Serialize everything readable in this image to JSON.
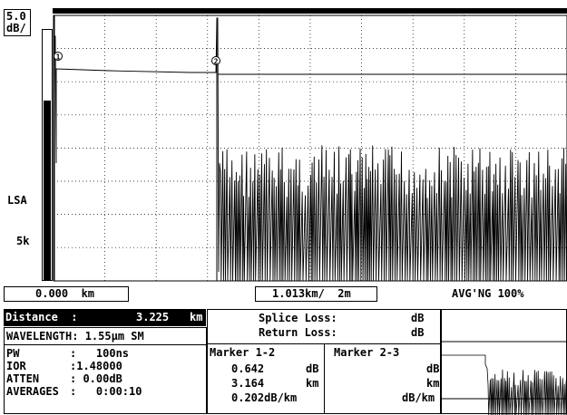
{
  "scale": {
    "db_per_div_top": "5.0",
    "db_per_div_bottom": "dB/",
    "mode": "LSA",
    "range": "5k"
  },
  "trace": {
    "marker_labels": [
      "1",
      "2"
    ],
    "cursor_left": "0.000  km",
    "window_width": "1.013km/  2m",
    "averaging": "AVG'NG 100%"
  },
  "distance": {
    "label": "Distance  :",
    "value": "3.225",
    "unit": "km"
  },
  "params": {
    "wavelength": "WAVELENGTH: 1.55μm SM",
    "pw_label": "PW",
    "pw_value": ":   100ns",
    "ior_label": "IOR",
    "ior_value": ":1.48000",
    "atten_label": "ATTEN",
    "atten_value": ": 0.00dB",
    "averages_label": "AVERAGES",
    "averages_value": ":   0:00:10"
  },
  "splice": {
    "splice_label": "Splice Loss:",
    "splice_unit": "dB",
    "return_label": "Return Loss:",
    "return_unit": "dB"
  },
  "marker12": {
    "title": "Marker 1-2",
    "loss": "0.642",
    "loss_unit": "dB",
    "dist": "3.164",
    "dist_unit": "km",
    "att": "0.202dB/km"
  },
  "marker23": {
    "title": "Marker 2-3",
    "loss_unit": "dB",
    "dist_unit": "km",
    "att_unit": "dB/km"
  }
}
